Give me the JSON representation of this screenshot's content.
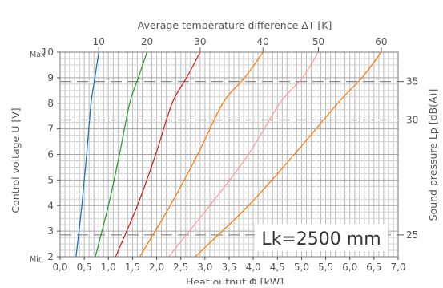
{
  "chart_data": {
    "type": "line",
    "title": "",
    "top_axis_label": "Average temperature difference ΔT [K]",
    "xlabel": "Heat output Φ [kW]",
    "ylabel": "Control voltage U [V]",
    "y2label": "Sound pressure Lp [dB(A)]",
    "xlim": [
      0.0,
      7.0
    ],
    "ylim": [
      2,
      10
    ],
    "x_ticks": [
      "0,0",
      "0,5",
      "1,0",
      "1,5",
      "2,0",
      "2,5",
      "3,0",
      "3,5",
      "4,0",
      "4,5",
      "5,0",
      "5,5",
      "6,0",
      "6,5",
      "7,0"
    ],
    "y_ticks": [
      "2",
      "3",
      "4",
      "5",
      "6",
      "7",
      "8",
      "9",
      "10"
    ],
    "y_max_label": "Max",
    "y_min_label": "Min",
    "sound_pressure_levels": [
      {
        "label": "35",
        "voltage": 8.85
      },
      {
        "label": "30",
        "voltage": 7.35
      },
      {
        "label": "25",
        "voltage": 2.85
      }
    ],
    "grid": true,
    "annotation": "Lk=2500 mm",
    "series": [
      {
        "name": "10",
        "color": "#1f77b4",
        "x": [
          0.33,
          0.45,
          0.55,
          0.64,
          0.72,
          0.8
        ],
        "y": [
          2,
          4,
          6,
          8,
          9,
          10
        ]
      },
      {
        "name": "20",
        "color": "#2ca02c",
        "x": [
          0.73,
          1.0,
          1.23,
          1.44,
          1.62,
          1.8
        ],
        "y": [
          2,
          4,
          6,
          8,
          9,
          10
        ]
      },
      {
        "name": "30",
        "color": "#d62728",
        "x": [
          1.15,
          1.6,
          1.98,
          2.32,
          2.62,
          2.9
        ],
        "y": [
          2,
          4,
          6,
          8,
          9,
          10
        ]
      },
      {
        "name": "40",
        "color": "#ff7f0e",
        "x": [
          1.65,
          2.28,
          2.85,
          3.37,
          3.82,
          4.2
        ],
        "y": [
          2,
          4,
          6,
          8,
          9,
          10
        ]
      },
      {
        "name": "50",
        "color": "#f7a1a6",
        "x": [
          2.25,
          3.1,
          3.9,
          4.55,
          5.02,
          5.35
        ],
        "y": [
          2,
          4,
          6,
          8,
          9,
          10
        ]
      },
      {
        "name": "60",
        "color": "#ff7f0e",
        "x": [
          2.8,
          3.9,
          4.85,
          5.75,
          6.25,
          6.65
        ],
        "y": [
          2,
          4,
          6,
          8,
          9,
          10
        ]
      }
    ]
  }
}
